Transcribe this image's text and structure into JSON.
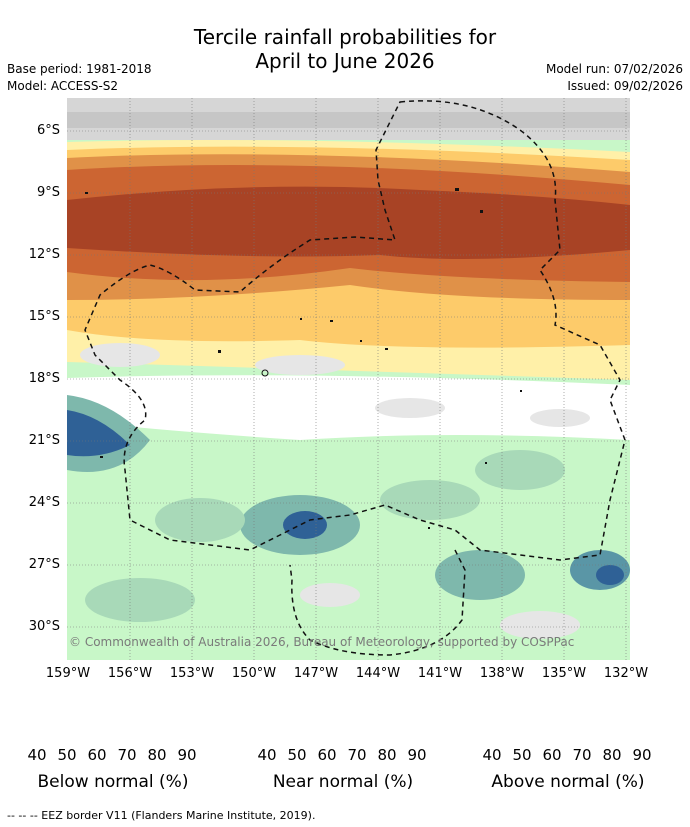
{
  "title": {
    "line1": "Tercile rainfall probabilities for",
    "line2": "April to June 2026"
  },
  "meta": {
    "base_period": "Base period: 1981-2018",
    "model": "Model: ACCESS-S2",
    "model_run": "Model run: 07/02/2026",
    "issued": "Issued: 09/02/2026"
  },
  "map": {
    "lat_labels": [
      "6°S",
      "9°S",
      "12°S",
      "15°S",
      "18°S",
      "21°S",
      "24°S",
      "27°S",
      "30°S"
    ],
    "lon_labels": [
      "159°W",
      "156°W",
      "153°W",
      "150°W",
      "147°W",
      "144°W",
      "141°W",
      "138°W",
      "135°W",
      "132°W"
    ],
    "copyright": "© Commonwealth of Australia 2026, Bureau of Meteorology, supported by COSPPac"
  },
  "legend": {
    "ticks": [
      "40",
      "50",
      "60",
      "70",
      "80",
      "90"
    ],
    "below": {
      "label": "Below normal (%)",
      "colors": [
        "#fff0a8",
        "#fdcb6a",
        "#e09148",
        "#cc6532",
        "#a84325",
        "#8a3218"
      ]
    },
    "near": {
      "label": "Near normal (%)",
      "colors": [
        "#e6e6e6",
        "#d6d6d6",
        "#c6c6c6",
        "#b4b4b4",
        "#9e9e9e",
        "#868686"
      ]
    },
    "above": {
      "label": "Above normal (%)",
      "colors": [
        "#c8f7c8",
        "#a8d9b8",
        "#7eb8ac",
        "#5a96a6",
        "#2f6196",
        "#1a4a78"
      ]
    }
  },
  "footer": {
    "eez": "--  --  -- EEZ border V11 (Flanders Marine Institute, 2019)."
  }
}
